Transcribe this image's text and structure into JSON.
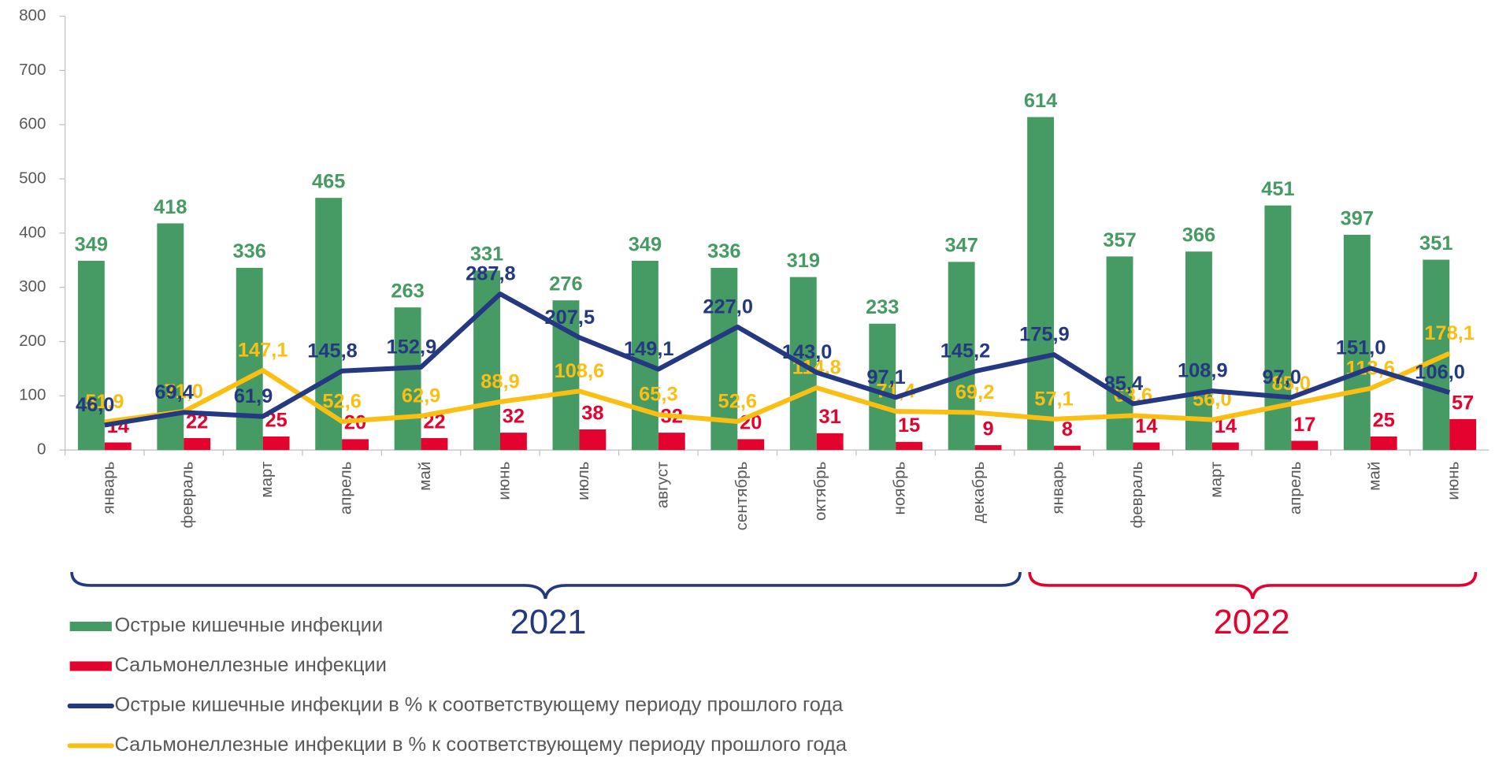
{
  "chart_data": {
    "type": "bar_line",
    "categories": [
      "январь",
      "февраль",
      "март",
      "апрель",
      "май",
      "июнь",
      "июль",
      "август",
      "сентябрь",
      "октябрь",
      "ноябрь",
      "декабрь",
      "январь",
      "февраль",
      "март",
      "апрель",
      "май",
      "июнь"
    ],
    "series": [
      {
        "name": "Острые кишечные инфекции",
        "type": "bar",
        "color": "#469a63",
        "values": [
          349,
          418,
          336,
          465,
          263,
          331,
          276,
          349,
          336,
          319,
          233,
          347,
          614,
          357,
          366,
          451,
          397,
          351
        ]
      },
      {
        "name": "Сальмонеллезные инфекции",
        "type": "bar",
        "color": "#e4032e",
        "values": [
          14,
          22,
          25,
          20,
          22,
          32,
          38,
          32,
          20,
          31,
          15,
          9,
          8,
          14,
          14,
          17,
          25,
          57
        ]
      },
      {
        "name": "Острые кишечные инфекции в % к соответствующему периоду прошлого года",
        "type": "line",
        "color": "#253882",
        "values": [
          46.0,
          69.4,
          61.9,
          145.8,
          152.9,
          287.8,
          207.5,
          149.1,
          227.0,
          143.0,
          97.1,
          145.2,
          175.9,
          85.4,
          108.9,
          97.0,
          151.0,
          106.0
        ],
        "value_labels": [
          "46,0",
          "69,4",
          "61,9",
          "145,8",
          "152,9",
          "287,8",
          "207,5",
          "149,1",
          "227,0",
          "143,0",
          "97,1",
          "145,2",
          "175,9",
          "85,4",
          "108,9",
          "97,0",
          "151,0",
          "106,0"
        ]
      },
      {
        "name": "Сальмонеллезные инфекции в % к соответствующему периоду прошлого года",
        "type": "line",
        "color": "#fbbf14",
        "values": [
          51.9,
          71.0,
          147.1,
          52.6,
          62.9,
          88.9,
          108.6,
          65.3,
          52.6,
          114.8,
          71.4,
          69.2,
          57.1,
          63.6,
          56.0,
          85.0,
          113.6,
          178.1
        ],
        "value_labels": [
          "51,9",
          "71,0",
          "147,1",
          "52,6",
          "62,9",
          "88,9",
          "108,6",
          "65,3",
          "52,6",
          "114,8",
          "71,4",
          "69,2",
          "57,1",
          "63,6",
          "56,0",
          "85,0",
          "113,6",
          "178,1"
        ]
      }
    ],
    "ylim": [
      0,
      800
    ],
    "yticks": [
      0,
      100,
      200,
      300,
      400,
      500,
      600,
      700,
      800
    ],
    "annotations": [
      "2021",
      "2022"
    ]
  }
}
